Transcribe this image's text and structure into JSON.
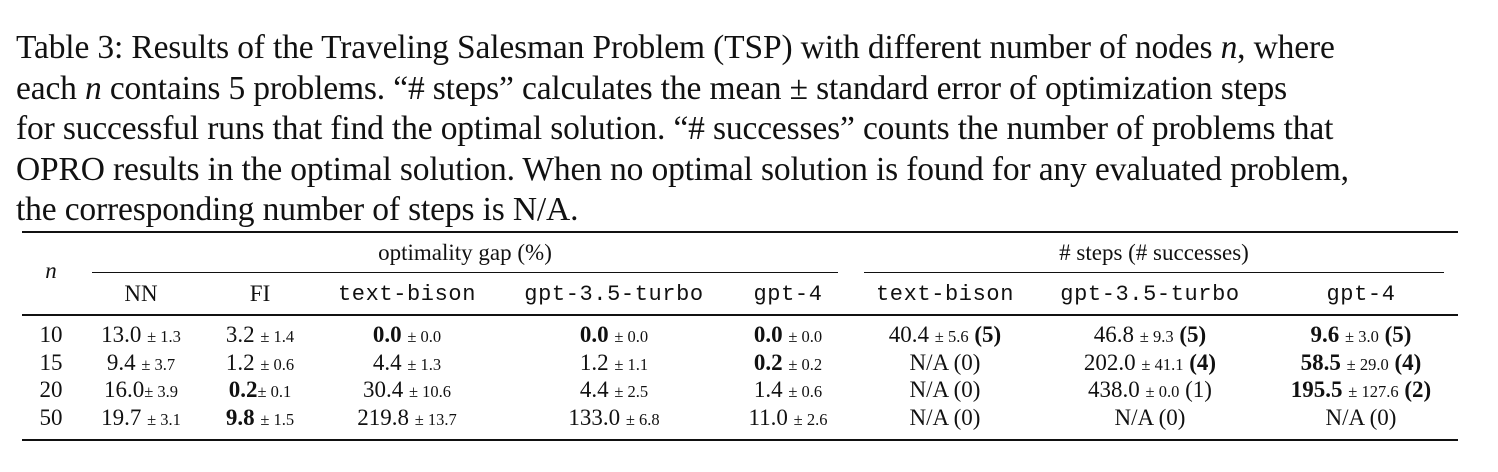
{
  "caption": {
    "lines": [
      "Table 3: Results of the Traveling Salesman Problem (TSP) with different number of nodes n, where",
      "each n contains 5 problems. “# steps” calculates the mean ± standard error of optimization steps",
      "for successful runs that find the optimal solution. “# successes” counts the number of problems that",
      "OPRO results in the optimal solution. When no optimal solution is found for any evaluated problem,",
      "the corresponding number of steps is N/A."
    ]
  },
  "table": {
    "row_header": "n",
    "group_headers": [
      "optimality gap (%)",
      "# steps (# successes)"
    ],
    "columns": [
      "NN",
      "FI",
      "text-bison",
      "gpt-3.5-turbo",
      "gpt-4",
      "text-bison",
      "gpt-3.5-turbo",
      "gpt-4"
    ],
    "rows": [
      {
        "n": "10",
        "cells": [
          {
            "v": "13.0",
            "e": "± 1.3"
          },
          {
            "v": "3.2",
            "e": "± 1.4"
          },
          {
            "v": "0.0",
            "e": "± 0.0",
            "bold": true
          },
          {
            "v": "0.0",
            "e": "± 0.0",
            "bold": true
          },
          {
            "v": "0.0",
            "e": "± 0.0",
            "bold": true
          },
          {
            "v": "40.4",
            "e": "± 5.6",
            "s": "(5)",
            "sbold": true
          },
          {
            "v": "46.8",
            "e": "± 9.3",
            "s": "(5)",
            "sbold": true
          },
          {
            "v": "9.6",
            "e": "± 3.0",
            "s": "(5)",
            "bold": true,
            "sbold": true
          }
        ]
      },
      {
        "n": "15",
        "cells": [
          {
            "v": "9.4",
            "e": "± 3.7"
          },
          {
            "v": "1.2",
            "e": "± 0.6"
          },
          {
            "v": "4.4",
            "e": "± 1.3"
          },
          {
            "v": "1.2",
            "e": "± 1.1"
          },
          {
            "v": "0.2",
            "e": "± 0.2",
            "bold": true
          },
          {
            "v": "N/A (0)"
          },
          {
            "v": "202.0",
            "e": "± 41.1",
            "s": "(4)",
            "sbold": true
          },
          {
            "v": "58.5",
            "e": "± 29.0",
            "s": "(4)",
            "bold": true,
            "sbold": true
          }
        ]
      },
      {
        "n": "20",
        "cells": [
          {
            "v": "16.0",
            "e": "± 3.9",
            "tight": true
          },
          {
            "v": "0.2",
            "e": "± 0.1",
            "bold": true,
            "tight": true
          },
          {
            "v": "30.4",
            "e": "± 10.6"
          },
          {
            "v": "4.4",
            "e": "± 2.5"
          },
          {
            "v": "1.4",
            "e": "± 0.6"
          },
          {
            "v": "N/A (0)"
          },
          {
            "v": "438.0",
            "e": "± 0.0",
            "s": "(1)"
          },
          {
            "v": "195.5",
            "e": "± 127.6",
            "s": "(2)",
            "bold": true,
            "sbold": true
          }
        ]
      },
      {
        "n": "50",
        "cells": [
          {
            "v": "19.7",
            "e": "± 3.1"
          },
          {
            "v": "9.8",
            "e": "± 1.5",
            "bold": true
          },
          {
            "v": "219.8",
            "e": "± 13.7"
          },
          {
            "v": "133.0",
            "e": "± 6.8"
          },
          {
            "v": "11.0",
            "e": "± 2.6"
          },
          {
            "v": "N/A (0)"
          },
          {
            "v": "N/A (0)"
          },
          {
            "v": "N/A (0)"
          }
        ]
      }
    ]
  }
}
